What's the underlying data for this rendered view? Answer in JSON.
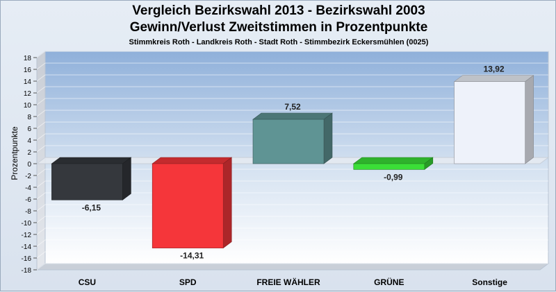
{
  "header": {
    "title_line1": "Vergleich Bezirkswahl 2013 - Bezirkswahl 2003",
    "title_line2": "Gewinn/Verlust Zweitstimmen in Prozentpunkte",
    "subtitle": "Stimmkreis Roth - Landkreis Roth - Stadt Roth - Stimmbezirk Eckersmühlen (0025)"
  },
  "chart_data": {
    "type": "bar",
    "title": "Vergleich Bezirkswahl 2013 - Bezirkswahl 2003 / Gewinn/Verlust Zweitstimmen in Prozentpunkte",
    "subtitle": "Stimmkreis Roth - Landkreis Roth - Stadt Roth - Stimmbezirk Eckersmühlen (0025)",
    "categories": [
      "CSU",
      "SPD",
      "FREIE WÄHLER",
      "GRÜNE",
      "Sonstige"
    ],
    "values": [
      -6.15,
      -14.31,
      7.52,
      -0.99,
      13.92
    ],
    "value_labels": [
      "-6,15",
      "-14,31",
      "7,52",
      "-0,99",
      "13,92"
    ],
    "colors": [
      "#35383d",
      "#f5363a",
      "#5f9494",
      "#3bde37",
      "#eef2fa"
    ],
    "xlabel": "",
    "ylabel": "Prozentpunkte",
    "ylim": [
      -18,
      18
    ],
    "yticks": [
      18,
      16,
      14,
      12,
      10,
      8,
      6,
      4,
      2,
      0,
      -2,
      -4,
      -6,
      -8,
      -10,
      -12,
      -14,
      -16,
      -18
    ],
    "grid": true,
    "legend": "none",
    "style": "3d"
  }
}
